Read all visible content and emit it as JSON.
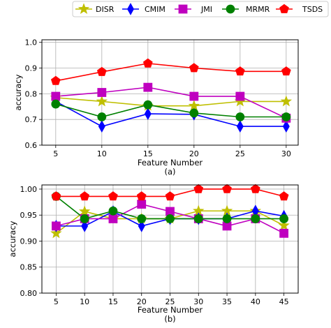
{
  "chart_data": [
    {
      "type": "line",
      "caption": "(a)",
      "xlabel": "Feature Number",
      "ylabel": "accuracy",
      "x": [
        5,
        10,
        15,
        20,
        25,
        30
      ],
      "xlim": [
        3.5,
        31.3
      ],
      "ylim": [
        0.6,
        1.01
      ],
      "xticks": [
        "5",
        "10",
        "15",
        "20",
        "25",
        "30"
      ],
      "yticks": [
        "0.6",
        "0.7",
        "0.8",
        "0.9",
        "1.0"
      ],
      "grid": true,
      "series": [
        {
          "name": "DISR",
          "color": "#bfbf00",
          "marker": "star",
          "values": [
            0.785,
            0.77,
            0.753,
            0.753,
            0.77,
            0.77
          ]
        },
        {
          "name": "CMIM",
          "color": "#0000ff",
          "marker": "diamond",
          "values": [
            0.77,
            0.673,
            0.722,
            0.72,
            0.673,
            0.673
          ]
        },
        {
          "name": "JMI",
          "color": "#bf00bf",
          "marker": "square",
          "values": [
            0.79,
            0.805,
            0.825,
            0.79,
            0.79,
            0.705
          ]
        },
        {
          "name": "MRMR",
          "color": "#008000",
          "marker": "circle",
          "values": [
            0.76,
            0.71,
            0.757,
            0.725,
            0.71,
            0.71
          ]
        },
        {
          "name": "TSDS",
          "color": "#ff0000",
          "marker": "pentagon",
          "values": [
            0.85,
            0.885,
            0.918,
            0.9,
            0.887,
            0.887
          ]
        }
      ]
    },
    {
      "type": "line",
      "caption": "(b)",
      "xlabel": "Feature Number",
      "ylabel": "accuracy",
      "x": [
        5,
        10,
        15,
        20,
        25,
        30,
        35,
        40,
        45
      ],
      "xlim": [
        2.5,
        47.5
      ],
      "ylim": [
        0.8,
        1.008
      ],
      "xticks": [
        "5",
        "10",
        "15",
        "20",
        "25",
        "30",
        "35",
        "40",
        "45"
      ],
      "yticks": [
        "0.80",
        "0.85",
        "0.90",
        "0.95",
        "1.00"
      ],
      "grid": true,
      "series": [
        {
          "name": "DISR",
          "color": "#bfbf00",
          "marker": "star",
          "values": [
            0.915,
            0.957,
            0.943,
            0.943,
            0.943,
            0.958,
            0.958,
            0.958,
            0.93
          ]
        },
        {
          "name": "CMIM",
          "color": "#0000ff",
          "marker": "diamond",
          "values": [
            0.929,
            0.929,
            0.957,
            0.929,
            0.943,
            0.943,
            0.943,
            0.958,
            0.948
          ]
        },
        {
          "name": "JMI",
          "color": "#bf00bf",
          "marker": "square",
          "values": [
            0.929,
            0.943,
            0.943,
            0.971,
            0.957,
            0.943,
            0.929,
            0.943,
            0.915
          ]
        },
        {
          "name": "MRMR",
          "color": "#008000",
          "marker": "circle",
          "values": [
            0.986,
            0.943,
            0.958,
            0.943,
            0.943,
            0.943,
            0.943,
            0.943,
            0.943
          ]
        },
        {
          "name": "TSDS",
          "color": "#ff0000",
          "marker": "pentagon",
          "values": [
            0.986,
            0.986,
            0.986,
            0.986,
            0.986,
            1.0,
            1.0,
            1.0,
            0.986
          ]
        }
      ]
    }
  ],
  "legend": {
    "placement": "top-right",
    "items": [
      {
        "label": "DISR",
        "color": "#bfbf00",
        "marker": "star"
      },
      {
        "label": "CMIM",
        "color": "#0000ff",
        "marker": "diamond"
      },
      {
        "label": "JMI",
        "color": "#bf00bf",
        "marker": "square"
      },
      {
        "label": "MRMR",
        "color": "#008000",
        "marker": "circle"
      },
      {
        "label": "TSDS",
        "color": "#ff0000",
        "marker": "pentagon"
      }
    ]
  }
}
